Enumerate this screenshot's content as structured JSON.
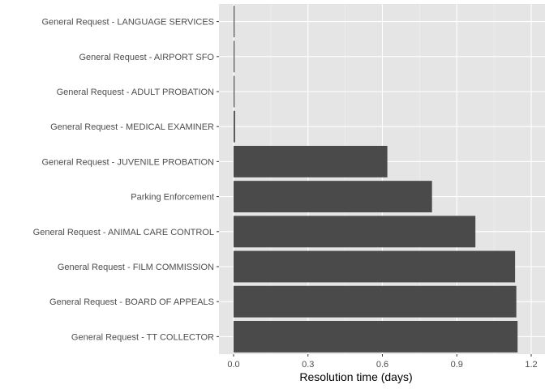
{
  "chart_data": {
    "type": "bar",
    "orientation": "horizontal",
    "categories": [
      "General Request - LANGUAGE SERVICES",
      "General Request - AIRPORT SFO",
      "General Request - ADULT PROBATION",
      "General Request - MEDICAL EXAMINER",
      "General Request - JUVENILE PROBATION",
      "Parking Enforcement",
      "General Request - ANIMAL CARE CONTROL",
      "General Request - FILM COMMISSION",
      "General Request - BOARD OF APPEALS",
      "General Request - TT COLLECTOR"
    ],
    "values": [
      0.001,
      0.002,
      0.003,
      0.006,
      0.62,
      0.8,
      0.975,
      1.135,
      1.14,
      1.145
    ],
    "title": "",
    "xlabel": "Resolution time (days)",
    "ylabel": "",
    "xlim": [
      -0.06,
      1.2
    ],
    "xticks": [
      0.0,
      0.3,
      0.6,
      0.9,
      1.2
    ],
    "xtick_labels": [
      "0.0",
      "0.3",
      "0.6",
      "0.9",
      "1.2"
    ],
    "grid": true,
    "colors": {
      "bar": "#4a4a4a",
      "panel": "#e5e5e5",
      "grid_major": "#ffffff",
      "grid_minor": "#f0f0f0"
    }
  }
}
